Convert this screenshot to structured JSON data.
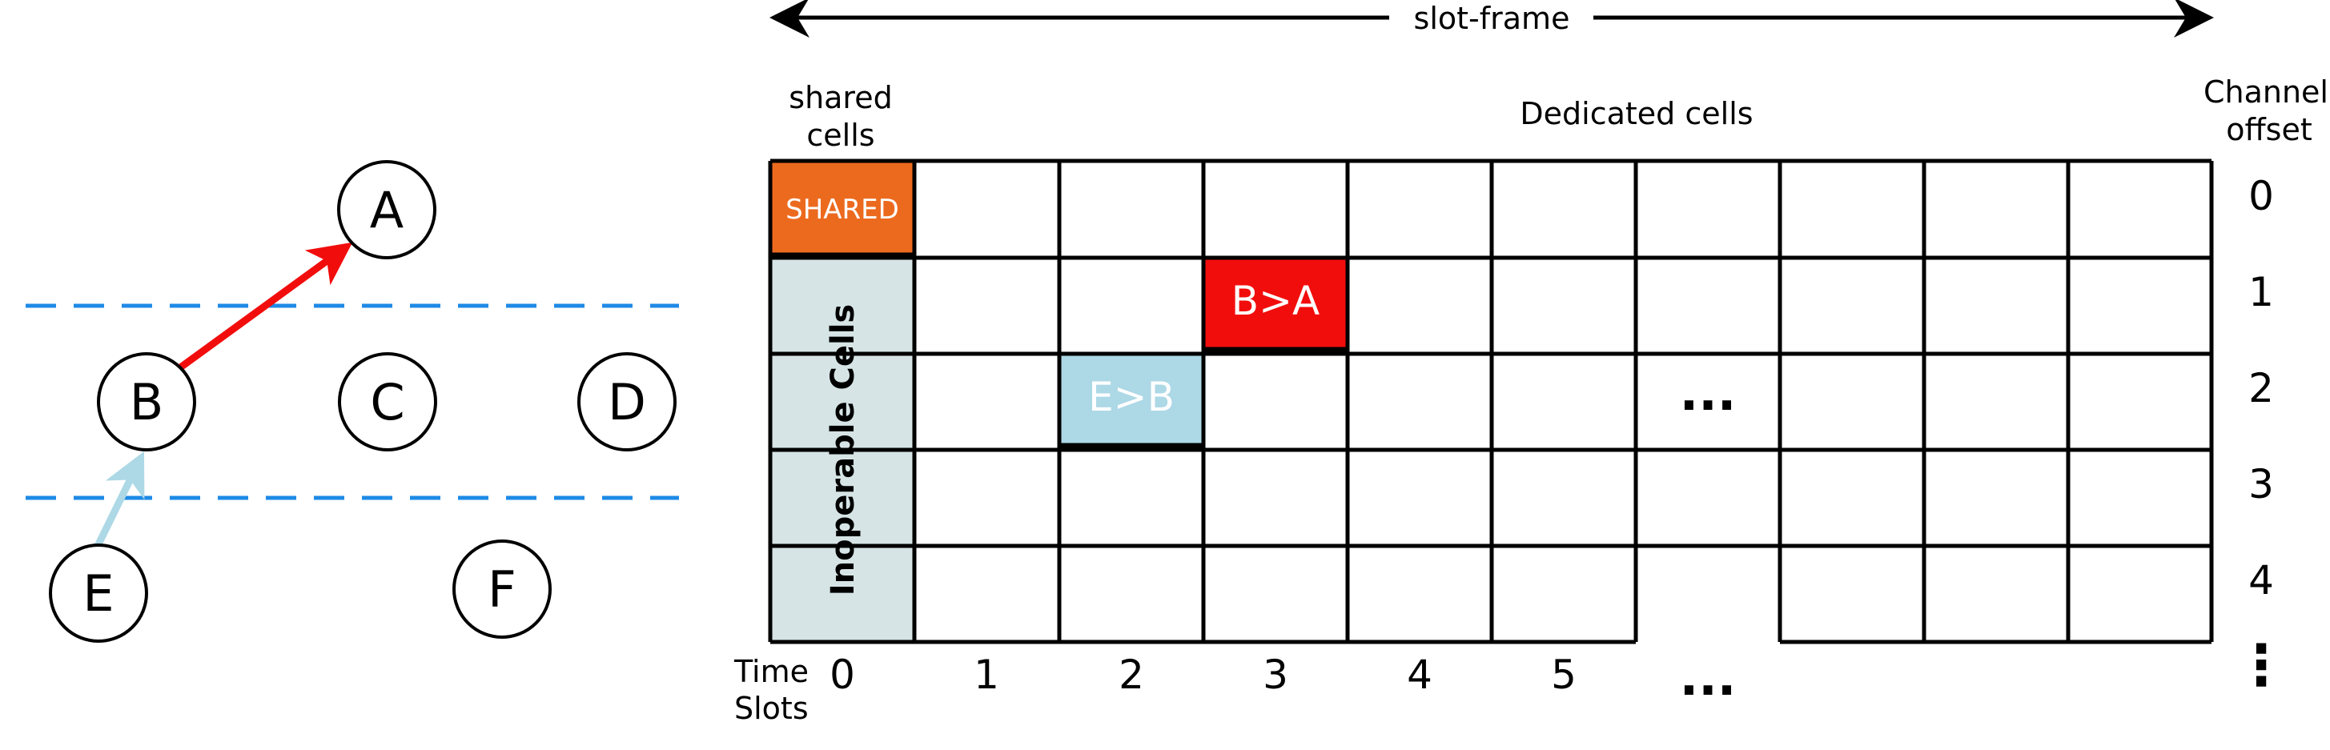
{
  "colors": {
    "shared_fill": "#EC6A1E",
    "b_to_a_fill": "#F20D0D",
    "e_to_b_fill": "#ADD8E6",
    "inoperable_fill": "#D6E4E5",
    "dashed_line": "#1E8AE6",
    "b_a_arrow": "#F20D0D",
    "e_b_arrow": "#ADD8E6"
  },
  "topology": {
    "nodes": [
      {
        "id": "a",
        "label": "A"
      },
      {
        "id": "b",
        "label": "B"
      },
      {
        "id": "c",
        "label": "C"
      },
      {
        "id": "d",
        "label": "D"
      },
      {
        "id": "e",
        "label": "E"
      },
      {
        "id": "f",
        "label": "F"
      }
    ],
    "links": [
      {
        "from": "B",
        "to": "A",
        "color": "red"
      },
      {
        "from": "E",
        "to": "B",
        "color": "light-blue"
      }
    ]
  },
  "schedule": {
    "slotframe_label": "slot-frame",
    "shared_header_line1": "shared",
    "shared_header_line2": "cells",
    "dedicated_header": "Dedicated cells",
    "channel_header_line1": "Channel",
    "channel_header_line2": "offset",
    "time_header_line1": "Time",
    "time_header_line2": "Slots",
    "shared_cell_label": "SHARED",
    "inoperable_label": "Inoperable Cells",
    "cells": [
      {
        "label": "B>A",
        "slot": 3,
        "channel": 1
      },
      {
        "label": "E>B",
        "slot": 2,
        "channel": 2
      }
    ],
    "time_slots": [
      "0",
      "1",
      "2",
      "3",
      "4",
      "5"
    ],
    "channel_offsets": [
      "0",
      "1",
      "2",
      "3",
      "4"
    ],
    "column_ellipsis": "...",
    "slot_ellipsis": "...",
    "channel_ellipsis": "⋮"
  }
}
